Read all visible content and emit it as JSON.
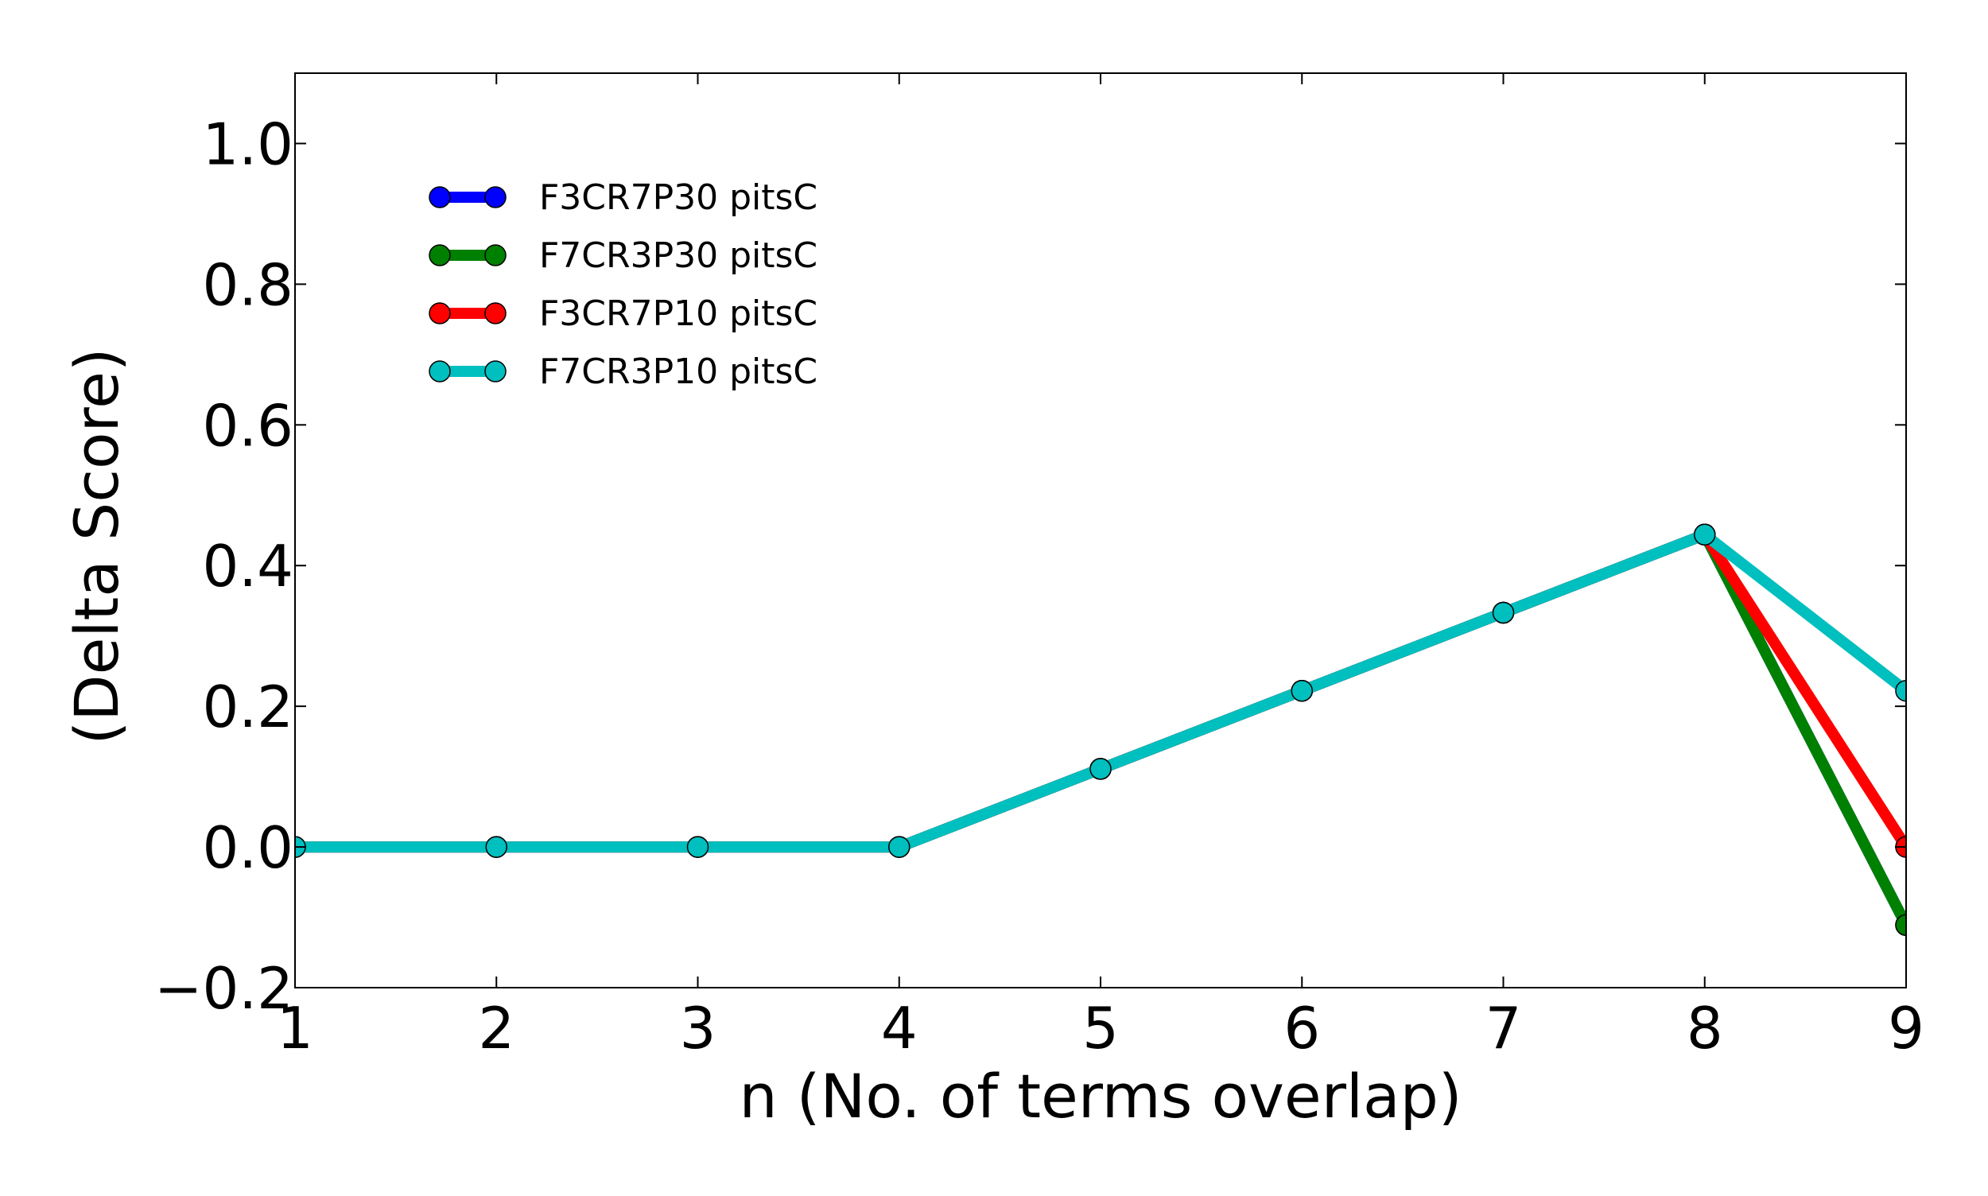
{
  "chart_data": {
    "type": "line",
    "title": "",
    "xlabel": "n (No. of terms overlap)",
    "ylabel": "(Delta Score)",
    "xlim": [
      1,
      9
    ],
    "ylim": [
      -0.2,
      1.1
    ],
    "x": [
      1,
      2,
      3,
      4,
      5,
      6,
      7,
      8,
      9
    ],
    "xticks": [
      "1",
      "2",
      "3",
      "4",
      "5",
      "6",
      "7",
      "8",
      "9"
    ],
    "yticks": [
      {
        "value": -0.2,
        "label": "−0.2"
      },
      {
        "value": 0.0,
        "label": "0.0"
      },
      {
        "value": 0.2,
        "label": "0.2"
      },
      {
        "value": 0.4,
        "label": "0.4"
      },
      {
        "value": 0.6,
        "label": "0.6"
      },
      {
        "value": 0.8,
        "label": "0.8"
      },
      {
        "value": 1.0,
        "label": "1.0"
      }
    ],
    "grid": false,
    "legend_position": "upper-left",
    "series": [
      {
        "name": "F3CR7P30 pitsC",
        "color": "#0000ff",
        "values": [
          0.0,
          0.0,
          0.0,
          0.0,
          0.111,
          0.222,
          0.333,
          0.444,
          -0.111
        ]
      },
      {
        "name": "F7CR3P30 pitsC",
        "color": "#008000",
        "values": [
          0.0,
          0.0,
          0.0,
          0.0,
          0.111,
          0.222,
          0.333,
          0.444,
          -0.111
        ]
      },
      {
        "name": "F3CR7P10 pitsC",
        "color": "#ff0000",
        "values": [
          0.0,
          0.0,
          0.0,
          0.0,
          0.111,
          0.222,
          0.333,
          0.444,
          0.0
        ]
      },
      {
        "name": "F7CR3P10 pitsC",
        "color": "#00bfbf",
        "values": [
          0.0,
          0.0,
          0.0,
          0.0,
          0.111,
          0.222,
          0.333,
          0.444,
          0.222
        ]
      }
    ]
  }
}
